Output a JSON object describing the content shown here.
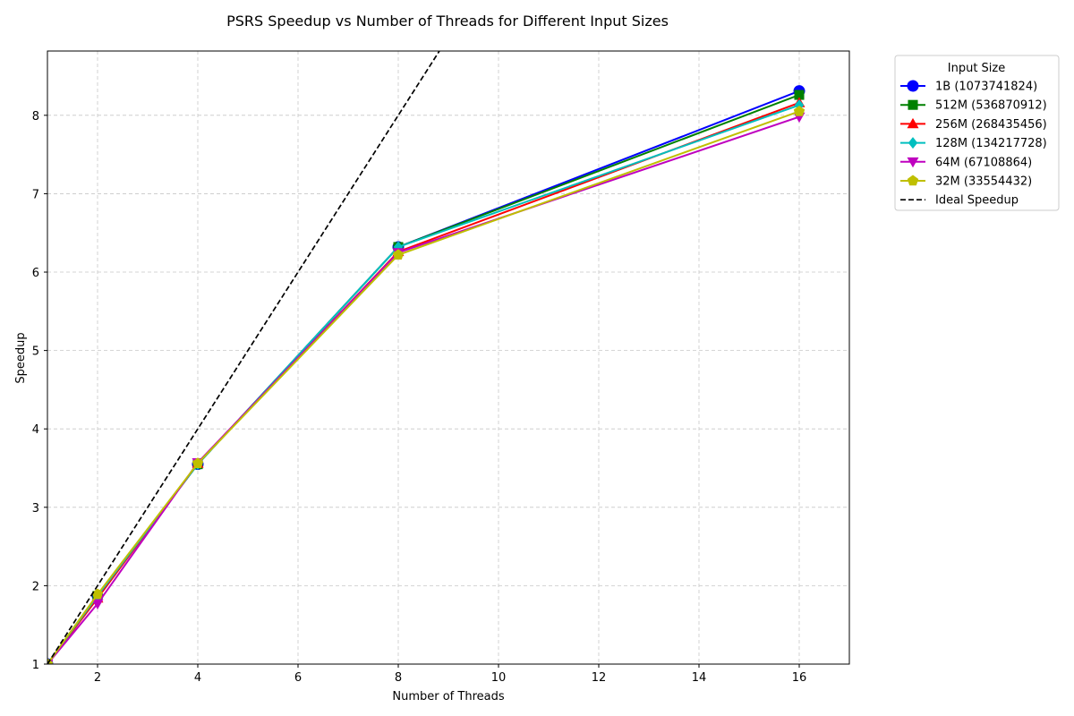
{
  "chart_data": {
    "type": "line",
    "title": "PSRS Speedup vs Number of Threads for Different Input Sizes",
    "xlabel": "Number of Threads",
    "ylabel": "Speedup",
    "xlim": [
      1,
      17
    ],
    "ylim": [
      1,
      8.82
    ],
    "xticks": [
      2,
      4,
      6,
      8,
      10,
      12,
      14,
      16
    ],
    "yticks": [
      1,
      2,
      3,
      4,
      5,
      6,
      7,
      8
    ],
    "grid": true,
    "legend_title": "Input Size",
    "legend_placement": "outside top-right",
    "x": [
      1,
      2,
      4,
      8,
      16
    ],
    "series": [
      {
        "name": "1B (1073741824)",
        "values": [
          1,
          1.87,
          3.55,
          6.32,
          8.31
        ],
        "color": "#0000ff",
        "marker": "circle"
      },
      {
        "name": "512M (536870912)",
        "values": [
          1,
          1.87,
          3.55,
          6.32,
          8.26
        ],
        "color": "#008000",
        "marker": "square"
      },
      {
        "name": "256M (268435456)",
        "values": [
          1,
          1.84,
          3.56,
          6.26,
          8.16
        ],
        "color": "#ff0000",
        "marker": "triangle-up"
      },
      {
        "name": "128M (134217728)",
        "values": [
          1,
          1.87,
          3.55,
          6.32,
          8.13
        ],
        "color": "#00bfbf",
        "marker": "diamond"
      },
      {
        "name": "64M (67108864)",
        "values": [
          1,
          1.77,
          3.57,
          6.25,
          7.98
        ],
        "color": "#bf00bf",
        "marker": "triangle-down"
      },
      {
        "name": "32M (33554432)",
        "values": [
          1,
          1.89,
          3.56,
          6.22,
          8.05
        ],
        "color": "#bfbf00",
        "marker": "pentagon"
      }
    ],
    "reference_line": {
      "name": "Ideal Speedup",
      "color": "#000000",
      "style": "dashed",
      "slope": 1
    }
  }
}
